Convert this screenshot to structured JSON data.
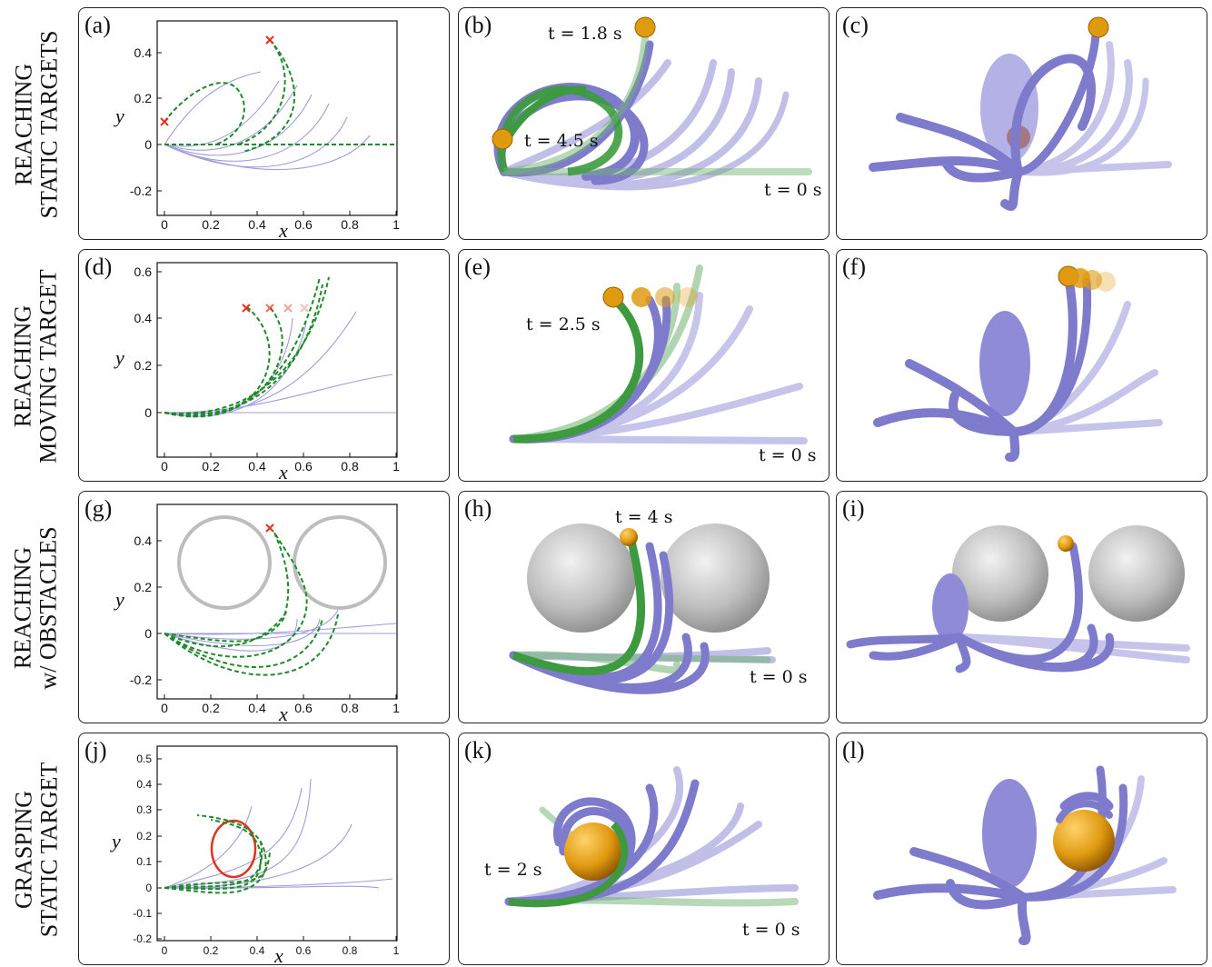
{
  "rows": [
    {
      "line1": "REACHING",
      "line2": "STATIC TARGETS"
    },
    {
      "line1": "REACHING",
      "line2": "MOVING TARGET"
    },
    {
      "line1": "REACHING",
      "line2": "w/ OBSTACLES"
    },
    {
      "line1": "GRASPING",
      "line2": "STATIC TARGET"
    }
  ],
  "panels": {
    "a": "(a)",
    "b": "(b)",
    "c": "(c)",
    "d": "(d)",
    "e": "(e)",
    "f": "(f)",
    "g": "(g)",
    "h": "(h)",
    "i": "(i)",
    "j": "(j)",
    "k": "(k)",
    "l": "(l)"
  },
  "axes": {
    "xlabel": "x",
    "ylabel": "y"
  },
  "time_labels": {
    "b_t1": "t = 1.8 s",
    "b_t2": "t = 4.5 s",
    "b_t0": "t = 0 s",
    "e_t1": "t = 2.5 s",
    "e_t0": "t = 0 s",
    "h_t1": "t = 4 s",
    "h_t0": "t = 0 s",
    "k_t1": "t = 2 s",
    "k_t0": "t = 0 s"
  },
  "colors": {
    "arm": "#8f8bd6",
    "path": "#1f8a2a",
    "target": "#e0321c",
    "obstacle": "#bdbdbd",
    "ball": "#e09a10"
  },
  "chart_data": [
    {
      "type": "line",
      "panel": "a",
      "xlabel": "x",
      "ylabel": "y",
      "xlim": [
        0,
        1
      ],
      "ylim": [
        -0.28,
        0.52
      ],
      "xticks": [
        "0",
        "0.2",
        "0.4",
        "0.6",
        "0.8",
        "1"
      ],
      "yticks": [
        "-0.2",
        "0",
        "0.2",
        "0.4"
      ],
      "targets": [
        [
          0,
          0.1
        ],
        [
          0.45,
          0.45
        ]
      ]
    },
    {
      "type": "line",
      "panel": "d",
      "xlabel": "x",
      "ylabel": "y",
      "xlim": [
        0,
        1
      ],
      "ylim": [
        -0.14,
        0.62
      ],
      "xticks": [
        "0",
        "0.2",
        "0.4",
        "0.6",
        "0.8",
        "1"
      ],
      "yticks": [
        "0",
        "0.2",
        "0.4",
        "0.6"
      ],
      "targets": [
        [
          0.35,
          0.45
        ],
        [
          0.45,
          0.45
        ],
        [
          0.53,
          0.45
        ],
        [
          0.6,
          0.45
        ]
      ]
    },
    {
      "type": "line",
      "panel": "g",
      "xlabel": "x",
      "ylabel": "y",
      "xlim": [
        0,
        1
      ],
      "ylim": [
        -0.25,
        0.52
      ],
      "xticks": [
        "0",
        "0.2",
        "0.4",
        "0.6",
        "0.8",
        "1"
      ],
      "yticks": [
        "-0.2",
        "0",
        "0.2",
        "0.4"
      ],
      "targets": [
        [
          0.45,
          0.45
        ]
      ]
    },
    {
      "type": "line",
      "panel": "j",
      "xlabel": "x",
      "ylabel": "y",
      "xlim": [
        0,
        1
      ],
      "ylim": [
        -0.2,
        0.55
      ],
      "xticks": [
        "0",
        "0.2",
        "0.4",
        "0.6",
        "0.8",
        "1"
      ],
      "yticks": [
        "-0.2",
        "-0.1",
        "0",
        "0.1",
        "0.2",
        "0.3",
        "0.4",
        "0.5"
      ],
      "circle": {
        "cx": 0.3,
        "cy": 0.17,
        "r": 0.08
      }
    }
  ]
}
